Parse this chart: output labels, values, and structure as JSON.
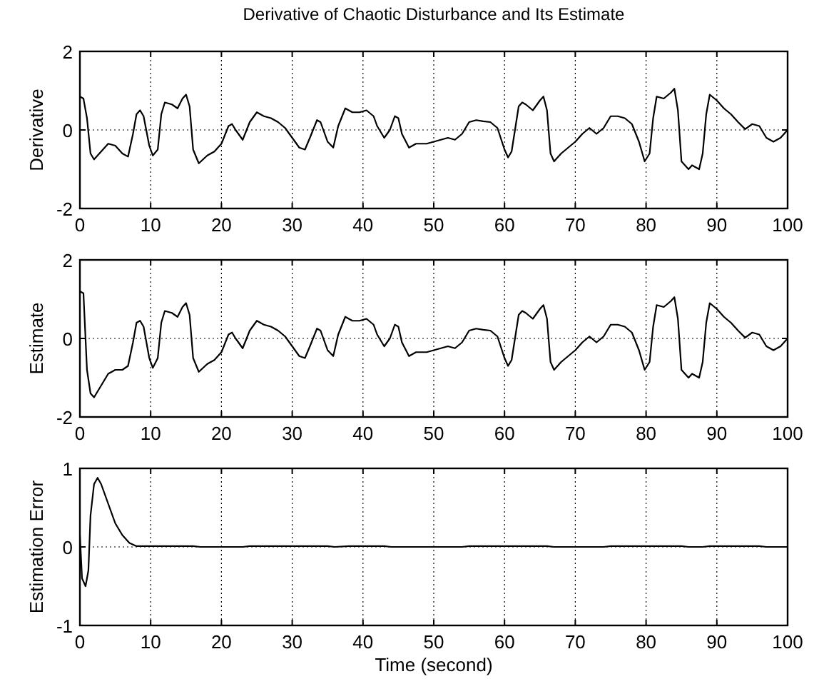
{
  "chart_data": [
    {
      "type": "line",
      "title": "Derivative of Chaotic Disturbance and Its Estimate",
      "ylabel": "Derivative",
      "xlim": [
        0,
        100
      ],
      "ylim": [
        -2,
        2
      ],
      "xticks": [
        0,
        10,
        20,
        30,
        40,
        50,
        60,
        70,
        80,
        90,
        100
      ],
      "yticks": [
        -2,
        0,
        2
      ],
      "grid": true,
      "color": "#000000",
      "x": [
        0,
        0.5,
        1,
        1.5,
        2,
        3,
        4,
        5,
        6,
        6.8,
        7.5,
        8,
        8.5,
        9,
        9.8,
        10.3,
        11,
        11.5,
        12,
        13,
        13.8,
        14.5,
        15,
        15.5,
        16,
        16.8,
        18,
        19,
        20,
        21,
        21.5,
        22,
        23,
        24,
        25,
        26,
        27,
        28,
        29,
        30,
        31,
        31.8,
        32.5,
        33.5,
        34,
        35,
        35.8,
        36.5,
        37.5,
        38.5,
        39.5,
        40.5,
        41.5,
        42,
        43,
        43.8,
        44.5,
        45,
        45.5,
        46.5,
        47.5,
        49,
        50,
        51,
        52,
        53,
        54,
        55,
        56,
        57,
        58,
        59,
        60,
        60.5,
        61,
        62,
        62.5,
        63,
        64,
        65,
        65.5,
        66,
        66.5,
        67,
        68,
        69,
        70,
        71,
        72,
        73,
        74,
        75,
        76,
        77,
        78,
        79,
        79.8,
        80.5,
        81,
        81.5,
        82.5,
        83.5,
        84,
        84.5,
        85,
        86,
        86.5,
        87.5,
        88,
        88.5,
        89,
        90,
        91,
        92,
        93,
        94,
        95,
        96,
        97,
        98,
        99,
        100
      ],
      "values": [
        0.85,
        0.8,
        0.3,
        -0.6,
        -0.75,
        -0.55,
        -0.35,
        -0.4,
        -0.6,
        -0.68,
        -0.1,
        0.4,
        0.5,
        0.35,
        -0.4,
        -0.65,
        -0.5,
        0.4,
        0.7,
        0.65,
        0.55,
        0.8,
        0.9,
        0.6,
        -0.5,
        -0.85,
        -0.65,
        -0.55,
        -0.35,
        0.1,
        0.15,
        0,
        -0.25,
        0.2,
        0.45,
        0.35,
        0.3,
        0.2,
        0.05,
        -0.2,
        -0.45,
        -0.5,
        -0.2,
        0.25,
        0.2,
        -0.3,
        -0.45,
        0.1,
        0.55,
        0.45,
        0.45,
        0.5,
        0.35,
        0.1,
        -0.2,
        0,
        0.35,
        0.3,
        -0.1,
        -0.45,
        -0.35,
        -0.35,
        -0.3,
        -0.25,
        -0.2,
        -0.25,
        -0.1,
        0.2,
        0.25,
        0.22,
        0.2,
        0.05,
        -0.5,
        -0.7,
        -0.55,
        0.6,
        0.7,
        0.65,
        0.5,
        0.75,
        0.85,
        0.5,
        -0.6,
        -0.8,
        -0.6,
        -0.45,
        -0.3,
        -0.1,
        0.05,
        -0.1,
        0.05,
        0.35,
        0.35,
        0.3,
        0.15,
        -0.3,
        -0.8,
        -0.6,
        0.3,
        0.85,
        0.8,
        0.95,
        1.05,
        0.5,
        -0.8,
        -1,
        -0.9,
        -1,
        -0.6,
        0.4,
        0.9,
        0.75,
        0.55,
        0.4,
        0.2,
        0.02,
        0.15,
        0.1,
        -0.2,
        -0.3,
        -0.2,
        0
      ]
    },
    {
      "type": "line",
      "ylabel": "Estimate",
      "xlim": [
        0,
        100
      ],
      "ylim": [
        -2,
        2
      ],
      "xticks": [
        0,
        10,
        20,
        30,
        40,
        50,
        60,
        70,
        80,
        90,
        100
      ],
      "yticks": [
        -2,
        0,
        2
      ],
      "grid": true,
      "color": "#000000",
      "x": [
        0,
        0.5,
        1,
        1.5,
        2,
        3,
        4,
        5,
        6,
        6.8,
        7.5,
        8,
        8.5,
        9,
        9.8,
        10.3,
        11,
        11.5,
        12,
        13,
        13.8,
        14.5,
        15,
        15.5,
        16,
        16.8,
        18,
        19,
        20,
        21,
        21.5,
        22,
        23,
        24,
        25,
        26,
        27,
        28,
        29,
        30,
        31,
        31.8,
        32.5,
        33.5,
        34,
        35,
        35.8,
        36.5,
        37.5,
        38.5,
        39.5,
        40.5,
        41.5,
        42,
        43,
        43.8,
        44.5,
        45,
        45.5,
        46.5,
        47.5,
        49,
        50,
        51,
        52,
        53,
        54,
        55,
        56,
        57,
        58,
        59,
        60,
        60.5,
        61,
        62,
        62.5,
        63,
        64,
        65,
        65.5,
        66,
        66.5,
        67,
        68,
        69,
        70,
        71,
        72,
        73,
        74,
        75,
        76,
        77,
        78,
        79,
        79.8,
        80.5,
        81,
        81.5,
        82.5,
        83.5,
        84,
        84.5,
        85,
        86,
        86.5,
        87.5,
        88,
        88.5,
        89,
        90,
        91,
        92,
        93,
        94,
        95,
        96,
        97,
        98,
        99,
        100
      ],
      "values": [
        1.2,
        1.15,
        -0.8,
        -1.4,
        -1.5,
        -1.2,
        -0.9,
        -0.8,
        -0.8,
        -0.7,
        -0.1,
        0.4,
        0.45,
        0.3,
        -0.5,
        -0.75,
        -0.5,
        0.4,
        0.7,
        0.65,
        0.55,
        0.8,
        0.9,
        0.6,
        -0.5,
        -0.85,
        -0.65,
        -0.55,
        -0.35,
        0.1,
        0.15,
        0,
        -0.25,
        0.2,
        0.45,
        0.35,
        0.3,
        0.2,
        0.05,
        -0.2,
        -0.45,
        -0.5,
        -0.2,
        0.25,
        0.2,
        -0.3,
        -0.45,
        0.1,
        0.55,
        0.45,
        0.45,
        0.5,
        0.35,
        0.1,
        -0.2,
        0,
        0.35,
        0.3,
        -0.1,
        -0.45,
        -0.35,
        -0.35,
        -0.3,
        -0.25,
        -0.2,
        -0.25,
        -0.1,
        0.2,
        0.25,
        0.22,
        0.2,
        0.05,
        -0.5,
        -0.7,
        -0.55,
        0.6,
        0.7,
        0.65,
        0.5,
        0.75,
        0.85,
        0.5,
        -0.6,
        -0.8,
        -0.6,
        -0.45,
        -0.3,
        -0.1,
        0.05,
        -0.1,
        0.05,
        0.35,
        0.35,
        0.3,
        0.15,
        -0.3,
        -0.8,
        -0.6,
        0.3,
        0.85,
        0.8,
        0.95,
        1.05,
        0.5,
        -0.8,
        -1,
        -0.9,
        -1,
        -0.6,
        0.4,
        0.9,
        0.75,
        0.55,
        0.4,
        0.2,
        0.02,
        0.15,
        0.1,
        -0.2,
        -0.3,
        -0.2,
        0
      ]
    },
    {
      "type": "line",
      "ylabel": "Estimation Error",
      "xlabel": "Time (second)",
      "xlim": [
        0,
        100
      ],
      "ylim": [
        -1,
        1
      ],
      "xticks": [
        0,
        10,
        20,
        30,
        40,
        50,
        60,
        70,
        80,
        90,
        100
      ],
      "yticks": [
        -1,
        0,
        1
      ],
      "grid": true,
      "color": "#000000",
      "x": [
        0,
        0.3,
        0.8,
        1.2,
        1.5,
        2,
        2.5,
        3,
        4,
        5,
        6,
        7,
        8,
        10,
        16,
        17,
        23,
        24,
        35,
        36,
        38,
        43,
        44,
        54,
        55,
        66,
        67,
        74,
        75,
        85,
        86,
        88,
        89,
        96,
        97,
        100
      ],
      "values": [
        0.15,
        -0.4,
        -0.5,
        -0.3,
        0.4,
        0.8,
        0.88,
        0.8,
        0.55,
        0.3,
        0.15,
        0.05,
        0.01,
        0.01,
        0.01,
        0,
        0,
        0.01,
        0.01,
        0,
        0.01,
        0.01,
        0,
        0,
        0.01,
        0.01,
        0,
        0,
        0.01,
        0.01,
        0,
        0,
        0.01,
        0.01,
        0,
        0
      ]
    }
  ]
}
